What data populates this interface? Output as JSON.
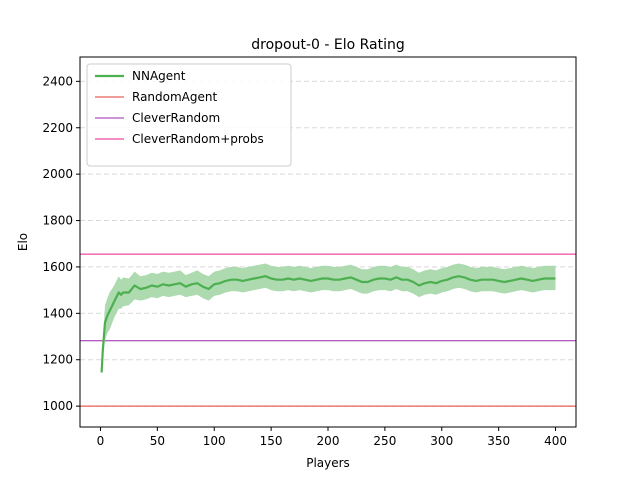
{
  "chart_data": {
    "type": "line",
    "title": "dropout-0 - Elo Rating",
    "xlabel": "Players",
    "ylabel": "Elo",
    "xlim": [
      -18,
      418
    ],
    "ylim": [
      910,
      2505
    ],
    "xticks": [
      0,
      50,
      100,
      150,
      200,
      250,
      300,
      350,
      400
    ],
    "yticks": [
      1000,
      1200,
      1400,
      1600,
      1800,
      2000,
      2200,
      2400
    ],
    "grid": "y-dashed",
    "legend_position": "top-left",
    "colors": {
      "NNAgent": "#4caf50",
      "NNAgent_band": "#a5d6a7",
      "RandomAgent": "#e53935",
      "CleverRandom": "#9c27b0",
      "CleverRandom+probs": "#e91e8c"
    },
    "series": [
      {
        "name": "NNAgent",
        "style": "line-with-band",
        "x": [
          1,
          2,
          3,
          4,
          5,
          6,
          8,
          10,
          12,
          14,
          16,
          18,
          20,
          25,
          30,
          35,
          40,
          45,
          50,
          55,
          60,
          65,
          70,
          75,
          80,
          85,
          90,
          95,
          100,
          105,
          110,
          115,
          120,
          125,
          130,
          135,
          140,
          145,
          150,
          155,
          160,
          165,
          170,
          175,
          180,
          185,
          190,
          195,
          200,
          205,
          210,
          215,
          220,
          225,
          230,
          235,
          240,
          245,
          250,
          255,
          260,
          265,
          270,
          275,
          280,
          285,
          290,
          295,
          300,
          305,
          310,
          315,
          320,
          325,
          330,
          335,
          340,
          345,
          350,
          355,
          360,
          365,
          370,
          375,
          380,
          385,
          390,
          395,
          400
        ],
        "y": [
          1145,
          1240,
          1300,
          1360,
          1375,
          1390,
          1410,
          1430,
          1450,
          1470,
          1490,
          1480,
          1490,
          1490,
          1520,
          1505,
          1510,
          1520,
          1515,
          1525,
          1520,
          1525,
          1530,
          1515,
          1525,
          1530,
          1515,
          1505,
          1525,
          1530,
          1540,
          1545,
          1545,
          1540,
          1545,
          1550,
          1555,
          1560,
          1550,
          1545,
          1545,
          1550,
          1545,
          1550,
          1545,
          1540,
          1545,
          1550,
          1550,
          1545,
          1545,
          1550,
          1555,
          1545,
          1535,
          1535,
          1545,
          1550,
          1550,
          1545,
          1555,
          1545,
          1545,
          1535,
          1520,
          1530,
          1535,
          1530,
          1540,
          1545,
          1555,
          1560,
          1555,
          1545,
          1540,
          1545,
          1545,
          1545,
          1540,
          1535,
          1540,
          1545,
          1550,
          1545,
          1540,
          1545,
          1550,
          1550,
          1550
        ],
        "y_low": [
          1140,
          1205,
          1245,
          1285,
          1300,
          1315,
          1330,
          1355,
          1380,
          1400,
          1420,
          1420,
          1430,
          1435,
          1460,
          1455,
          1460,
          1470,
          1465,
          1475,
          1470,
          1475,
          1480,
          1470,
          1475,
          1480,
          1465,
          1455,
          1475,
          1480,
          1490,
          1495,
          1495,
          1490,
          1495,
          1500,
          1505,
          1510,
          1500,
          1495,
          1495,
          1500,
          1495,
          1500,
          1495,
          1490,
          1495,
          1500,
          1500,
          1495,
          1495,
          1500,
          1505,
          1495,
          1485,
          1485,
          1495,
          1500,
          1500,
          1495,
          1505,
          1495,
          1495,
          1485,
          1470,
          1480,
          1485,
          1480,
          1490,
          1495,
          1505,
          1510,
          1505,
          1495,
          1490,
          1495,
          1495,
          1495,
          1490,
          1485,
          1490,
          1495,
          1500,
          1495,
          1490,
          1495,
          1500,
          1500,
          1500
        ],
        "y_high": [
          1150,
          1275,
          1355,
          1435,
          1450,
          1465,
          1490,
          1505,
          1520,
          1540,
          1560,
          1545,
          1555,
          1550,
          1580,
          1560,
          1565,
          1575,
          1570,
          1580,
          1575,
          1580,
          1585,
          1565,
          1575,
          1585,
          1570,
          1560,
          1580,
          1585,
          1595,
          1600,
          1600,
          1595,
          1600,
          1605,
          1610,
          1615,
          1605,
          1600,
          1600,
          1605,
          1600,
          1605,
          1600,
          1595,
          1600,
          1605,
          1605,
          1600,
          1600,
          1605,
          1610,
          1600,
          1590,
          1590,
          1600,
          1605,
          1605,
          1600,
          1610,
          1600,
          1600,
          1590,
          1575,
          1585,
          1590,
          1585,
          1595,
          1600,
          1610,
          1615,
          1610,
          1600,
          1595,
          1600,
          1600,
          1600,
          1595,
          1590,
          1595,
          1600,
          1605,
          1600,
          1595,
          1600,
          1605,
          1605,
          1605
        ]
      },
      {
        "name": "RandomAgent",
        "style": "hline",
        "y": 1000
      },
      {
        "name": "CleverRandom",
        "style": "hline",
        "y": 1282
      },
      {
        "name": "CleverRandom+probs",
        "style": "hline",
        "y": 1655
      }
    ]
  }
}
